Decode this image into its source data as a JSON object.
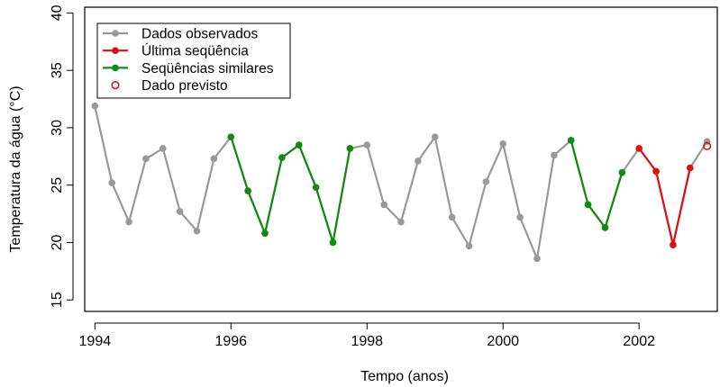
{
  "chart_data": {
    "type": "line",
    "xlabel": "Tempo (anos)",
    "ylabel": "Temperatura da água (°C)",
    "xlim": [
      1993.85,
      2003.15
    ],
    "ylim": [
      14,
      40.5
    ],
    "x_ticks": [
      1994,
      1996,
      1998,
      2000,
      2002
    ],
    "y_ticks": [
      15,
      20,
      25,
      30,
      35,
      40
    ],
    "legend_position": "top-left",
    "legend": [
      {
        "label": "Dados observados",
        "marker": "line-dot",
        "color": "#999999"
      },
      {
        "label": "Última seqüência",
        "marker": "line-dot",
        "color": "#e01010"
      },
      {
        "label": "Seqüências similares",
        "marker": "line-dot",
        "color": "#108a10"
      },
      {
        "label": "Dado previsto",
        "marker": "open-circle",
        "color": "#e01010"
      }
    ],
    "colors": {
      "observed": "#999999",
      "last": "#e01010",
      "similar": "#108a10",
      "predicted": "#e01010"
    },
    "series": [
      {
        "key": "observed",
        "x": [
          1994.0,
          1994.25,
          1994.5,
          1994.75,
          1995.0,
          1995.25,
          1995.5,
          1995.75,
          1996.0,
          1996.25,
          1996.5,
          1996.75,
          1997.0,
          1997.25,
          1997.5,
          1997.75,
          1998.0,
          1998.25,
          1998.5,
          1998.75,
          1999.0,
          1999.25,
          1999.5,
          1999.75,
          2000.0,
          2000.25,
          2000.5,
          2000.75,
          2001.0,
          2001.25,
          2001.5,
          2001.75,
          2002.0,
          2002.25,
          2002.5,
          2002.75,
          2003.0
        ],
        "y": [
          31.9,
          25.2,
          21.8,
          27.3,
          28.2,
          22.7,
          21.0,
          27.3,
          29.2,
          24.5,
          20.8,
          27.4,
          28.5,
          24.8,
          20.0,
          28.2,
          28.5,
          23.3,
          21.8,
          27.1,
          29.2,
          22.2,
          19.7,
          25.3,
          28.6,
          22.2,
          18.6,
          27.6,
          28.9,
          23.3,
          21.3,
          26.1,
          28.2,
          26.2,
          19.8,
          26.5,
          28.8
        ]
      },
      {
        "key": "similar",
        "x": [
          1996.0,
          1996.25,
          1996.5,
          1996.75,
          1997.0,
          1997.25,
          1997.5,
          1997.75,
          2001.0,
          2001.25,
          2001.5,
          2001.75
        ],
        "y": [
          29.2,
          24.5,
          20.8,
          27.4,
          28.5,
          24.8,
          20.0,
          28.2,
          28.9,
          23.3,
          21.3,
          26.1
        ],
        "segments": [
          [
            1996.0,
            1997.75
          ],
          [
            2001.0,
            2001.75
          ]
        ]
      },
      {
        "key": "last",
        "x": [
          2002.0,
          2002.25,
          2002.5,
          2002.75
        ],
        "y": [
          28.2,
          26.2,
          19.8,
          26.5
        ]
      },
      {
        "key": "predicted",
        "x": [
          2003.0
        ],
        "y": [
          28.4
        ]
      }
    ]
  }
}
